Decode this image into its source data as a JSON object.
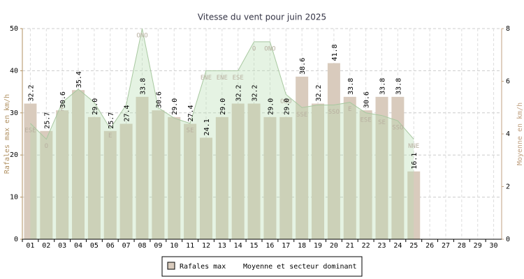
{
  "chart_data": {
    "type": "bar",
    "title": "Vitesse du vent pour juin 2025",
    "ylabel": "Rafales max en km/h",
    "y2label": "Moyenne en km/h",
    "categories": [
      "01",
      "02",
      "03",
      "04",
      "05",
      "06",
      "07",
      "08",
      "09",
      "10",
      "11",
      "12",
      "13",
      "14",
      "15",
      "16",
      "17",
      "18",
      "19",
      "20",
      "21",
      "22",
      "23",
      "24",
      "25",
      "26",
      "27",
      "28",
      "29",
      "30"
    ],
    "series": [
      {
        "name": "Rafales max",
        "color": "#d9cbbd",
        "values": [
          32.2,
          25.7,
          30.6,
          35.4,
          29.0,
          25.7,
          27.4,
          33.8,
          30.6,
          29.0,
          27.4,
          24.1,
          29.0,
          32.2,
          32.2,
          29.0,
          29.0,
          38.6,
          32.2,
          41.8,
          33.8,
          30.6,
          33.8,
          33.8,
          16.1,
          null,
          null,
          null,
          null,
          null
        ],
        "value_labels": [
          "32.2",
          "25.7",
          "30.6",
          "35.4",
          "29.0",
          "25.7",
          "27.4",
          "33.8",
          "30.6",
          "29.0",
          "27.4",
          "24.1",
          "29.0",
          "32.2",
          "32.2",
          "29.0",
          "29.0",
          "38.6",
          "32.2",
          "41.8",
          "33.8",
          "30.6",
          "33.8",
          "33.8",
          "16.1",
          null,
          null,
          null,
          null,
          null
        ]
      },
      {
        "name": "Moyenne et secteur dominant",
        "type": "area",
        "axis": "y2",
        "color": "#b4dcae",
        "values": [
          4.4,
          3.8,
          5.2,
          5.7,
          5.2,
          4.2,
          5.1,
          8.0,
          5.0,
          4.6,
          4.4,
          6.4,
          6.4,
          6.4,
          7.5,
          7.5,
          5.5,
          5.0,
          5.1,
          5.1,
          5.2,
          4.8,
          4.7,
          4.5,
          3.8,
          null,
          null,
          null,
          null,
          null
        ],
        "labels": [
          "ESE",
          "O",
          "E",
          null,
          null,
          "E",
          null,
          "ONO",
          null,
          null,
          "SE",
          "ENE",
          "ENE",
          "ESE",
          "O",
          "ONO",
          "ONO",
          "SSE",
          null,
          "SSO",
          "E",
          "ESE",
          "SE",
          "SSO",
          "NNE",
          null,
          null,
          null,
          null,
          null
        ]
      }
    ],
    "ylim": [
      0,
      50
    ],
    "yticks": [
      0,
      10,
      20,
      30,
      40,
      50
    ],
    "y2lim": [
      0,
      8
    ],
    "y2ticks": [
      0,
      2,
      4,
      6,
      8
    ],
    "grid": true
  }
}
